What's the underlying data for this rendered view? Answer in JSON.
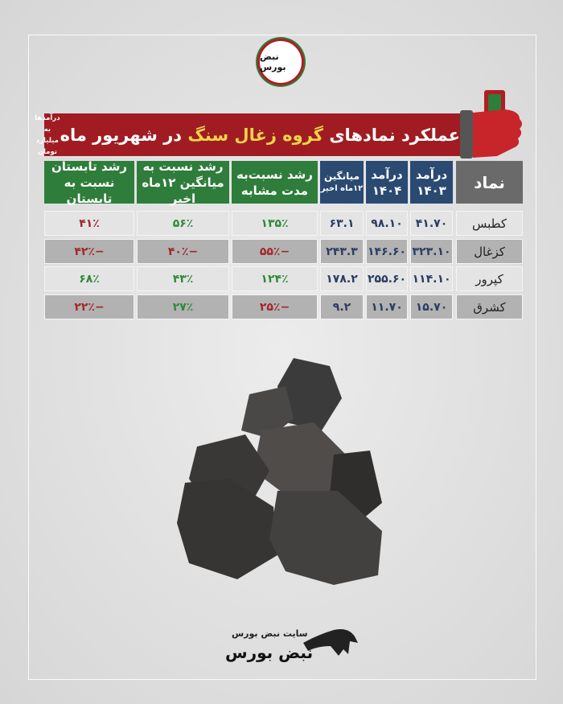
{
  "logo": {
    "text": "نبض بورس"
  },
  "banner": {
    "title_pre": "عملکرد نمادهای",
    "title_highlight": "گروه زغال سنگ",
    "title_post": "در شهریور ماه",
    "unit_line1": "درآمدها به",
    "unit_line2": "میلیارد تومان"
  },
  "headers": {
    "symbol": "نماد",
    "rev1403_l1": "درآمد",
    "rev1403_l2": "۱۴۰۳",
    "rev1404_l1": "درآمد",
    "rev1404_l2": "۱۴۰۴",
    "avg_l1": "میانگین",
    "avg_l2": "۱۲ماه اخیر",
    "g_same_l1": "رشد نسبت‌به",
    "g_same_l2": "مدت مشابه",
    "g_avg_l1": "رشد نسبت به",
    "g_avg_l2": "میانگین ۱۲ماه اخیر",
    "g_summer_l1": "رشد تابستان",
    "g_summer_l2": "نسبت به تابستان"
  },
  "rows": [
    {
      "symbol": "کطبس",
      "rev1403": "۴۱.۷۰",
      "rev1404": "۹۸.۱۰",
      "avg": "۶۳.۱",
      "g_same": "۱۳۵٪",
      "g_avg": "۵۶٪",
      "g_summer": "۴۱٪"
    },
    {
      "symbol": "کزغال",
      "rev1403": "۳۲۳.۱۰",
      "rev1404": "۱۴۶.۶۰",
      "avg": "۲۴۳.۳",
      "g_same": "−۵۵٪",
      "g_avg": "−۴۰٪",
      "g_summer": "−۴۲٪"
    },
    {
      "symbol": "کپرور",
      "rev1403": "۱۱۴.۱۰",
      "rev1404": "۲۵۵.۶۰",
      "avg": "۱۷۸.۲",
      "g_same": "۱۲۴٪",
      "g_avg": "۴۳٪",
      "g_summer": "۶۸٪"
    },
    {
      "symbol": "کشرق",
      "rev1403": "۱۵.۷۰",
      "rev1404": "۱۱.۷۰",
      "avg": "۹.۲",
      "g_same": "−۲۵٪",
      "g_avg": "۲۷٪",
      "g_summer": "−۲۲٪"
    }
  ],
  "footer": {
    "site": "سایت نبض بورس",
    "brand": "نبض بورس"
  },
  "colors": {
    "banner": "#a01c22",
    "highlight": "#f4d34a",
    "green_header": "#2e7d3a",
    "blue_header": "#2a4a72",
    "positive": "#2e8b3a",
    "negative": "#a3262a"
  }
}
